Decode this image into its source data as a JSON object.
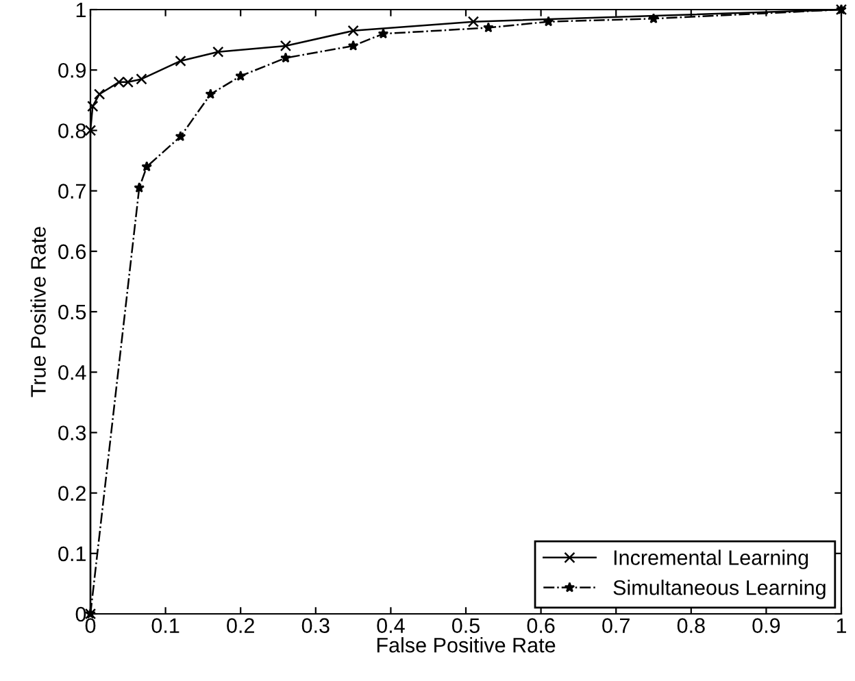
{
  "chart_data": {
    "type": "line",
    "xlabel": "False Positive Rate",
    "ylabel": "True Positive Rate",
    "xlim": [
      0,
      1
    ],
    "ylim": [
      0,
      1
    ],
    "xticks": [
      0,
      0.1,
      0.2,
      0.3,
      0.4,
      0.5,
      0.6,
      0.7,
      0.8,
      0.9,
      1
    ],
    "yticks": [
      0,
      0.1,
      0.2,
      0.3,
      0.4,
      0.5,
      0.6,
      0.7,
      0.8,
      0.9,
      1
    ],
    "grid": false,
    "legend": "bottom right",
    "series": [
      {
        "name": "Incremental Learning",
        "color": "#000000",
        "marker": "cross",
        "line_style": "solid",
        "x": [
          0,
          0,
          0.003,
          0.012,
          0.038,
          0.05,
          0.068,
          0.12,
          0.17,
          0.26,
          0.35,
          0.51,
          1
        ],
        "values": [
          0,
          0.8,
          0.84,
          0.86,
          0.88,
          0.88,
          0.885,
          0.915,
          0.93,
          0.94,
          0.965,
          0.98,
          1
        ]
      },
      {
        "name": "Simultaneous Learning",
        "color": "#000000",
        "marker": "star",
        "line_style": "dashdot",
        "x": [
          0,
          0.065,
          0.075,
          0.12,
          0.16,
          0.2,
          0.26,
          0.35,
          0.39,
          0.53,
          0.61,
          0.75,
          1
        ],
        "values": [
          0,
          0.705,
          0.74,
          0.79,
          0.86,
          0.89,
          0.92,
          0.94,
          0.96,
          0.97,
          0.98,
          0.985,
          1
        ]
      }
    ]
  }
}
